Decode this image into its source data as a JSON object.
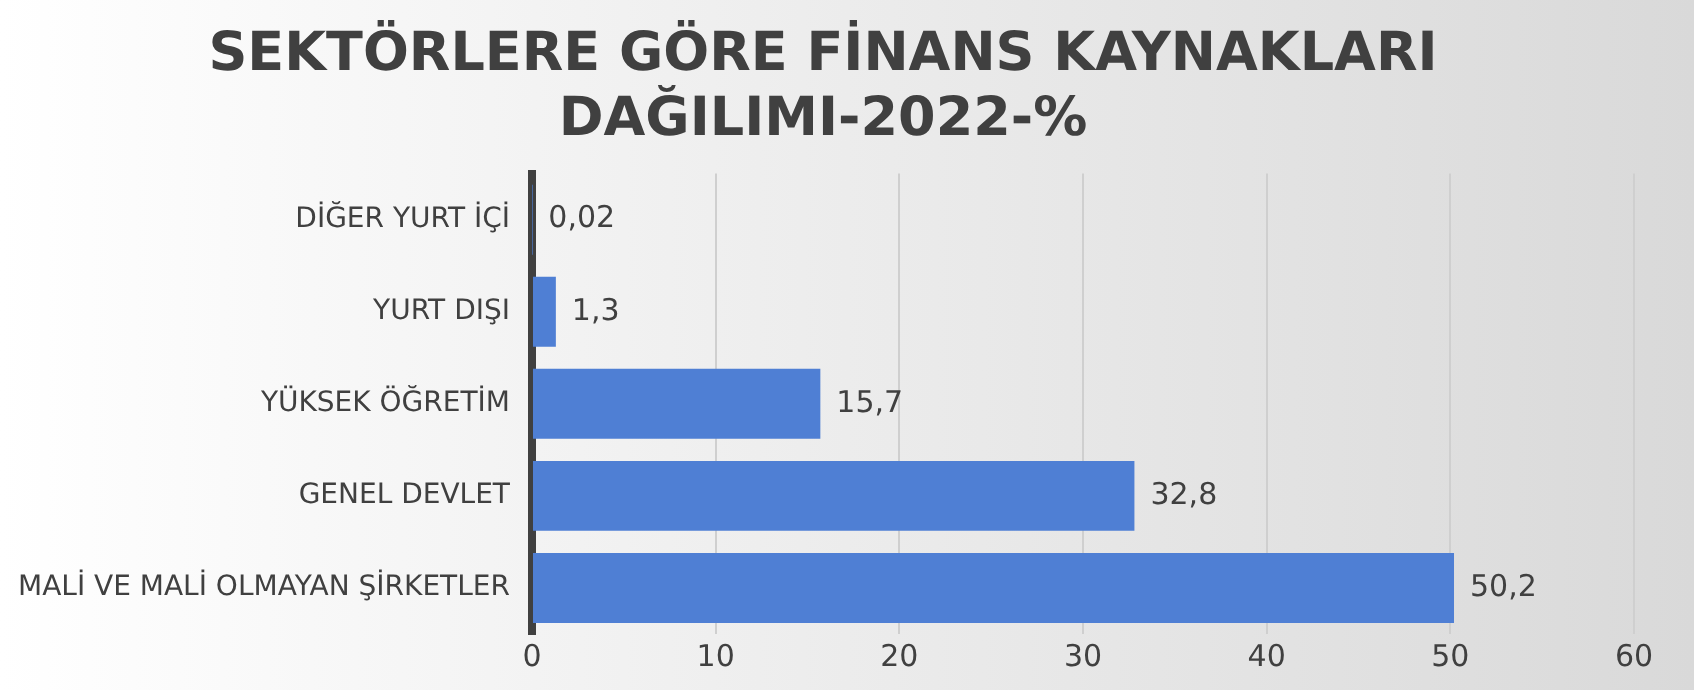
{
  "chart_data": {
    "type": "bar",
    "orientation": "horizontal",
    "title": "SEKTÖRLERE GÖRE FİNANS KAYNAKLARI\nDAĞILIMI-2022-%",
    "categories": [
      "DİĞER YURT İÇİ",
      "YURT DIŞI",
      "YÜKSEK ÖĞRETİM",
      "GENEL DEVLET",
      "MALİ VE MALİ OLMAYAN ŞİRKETLER"
    ],
    "values": [
      0.02,
      1.3,
      15.7,
      32.8,
      50.2
    ],
    "value_labels": [
      "0,02",
      "1,3",
      "15,7",
      "32,8",
      "50,2"
    ],
    "color": "#4f7fd4",
    "xlim": [
      0,
      60
    ],
    "xticks": [
      0,
      10,
      20,
      30,
      40,
      50,
      60
    ],
    "grid": "x",
    "legend": false
  }
}
